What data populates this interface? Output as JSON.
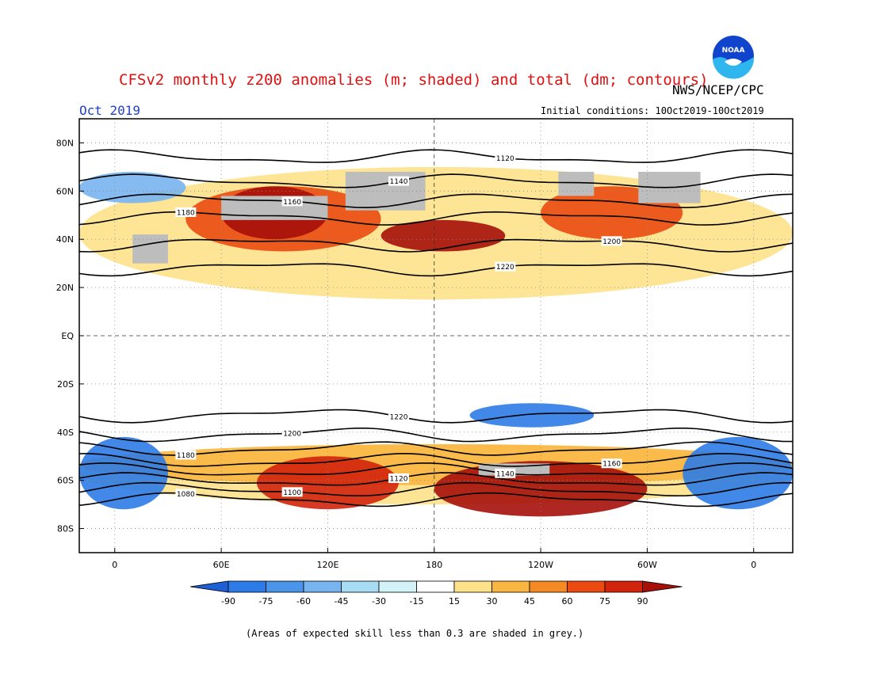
{
  "header": {
    "title": "CFSv2 monthly z200 anomalies (m; shaded) and total (dm; contours)",
    "agency": "NWS/NCEP/CPC",
    "month": "Oct 2019",
    "initial_conditions": "Initial conditions: 10Oct2019-10Oct2019",
    "logo_text": "NOAA"
  },
  "map": {
    "lat_labels": [
      "80N",
      "60N",
      "40N",
      "20N",
      "EQ",
      "20S",
      "40S",
      "60S",
      "80S"
    ],
    "lon_labels": [
      "0",
      "60E",
      "120E",
      "180",
      "120W",
      "60W",
      "0"
    ],
    "contours": [
      {
        "label": "1080",
        "lat": -68
      },
      {
        "label": "1100",
        "lat": -64
      },
      {
        "label": "1120",
        "lat": -60
      },
      {
        "label": "1140",
        "lat": -56
      },
      {
        "label": "1160",
        "lat": -52
      },
      {
        "label": "1180",
        "lat": -47
      },
      {
        "label": "1200",
        "lat": -41
      },
      {
        "label": "1220",
        "lat": -33
      },
      {
        "label": "1220",
        "lat": 28
      },
      {
        "label": "1200",
        "lat": 38
      },
      {
        "label": "1180",
        "lat": 49
      },
      {
        "label": "1160",
        "lat": 56
      },
      {
        "label": "1140",
        "lat": 64
      },
      {
        "label": "1120",
        "lat": 74
      }
    ]
  },
  "colorbar": {
    "labels": [
      "-90",
      "-75",
      "-60",
      "-45",
      "-30",
      "-15",
      "15",
      "30",
      "45",
      "60",
      "75",
      "90"
    ],
    "colors": [
      "#1f5fd6",
      "#2c7be6",
      "#4a94ea",
      "#78b4f0",
      "#a8dcf4",
      "#d2f2f8",
      "#ffffff",
      "#fde28a",
      "#f9b641",
      "#f58a24",
      "#eb4a10",
      "#d2230c",
      "#a5100a"
    ]
  },
  "footnote": "(Areas of expected skill less than 0.3 are shaded in grey.)"
}
